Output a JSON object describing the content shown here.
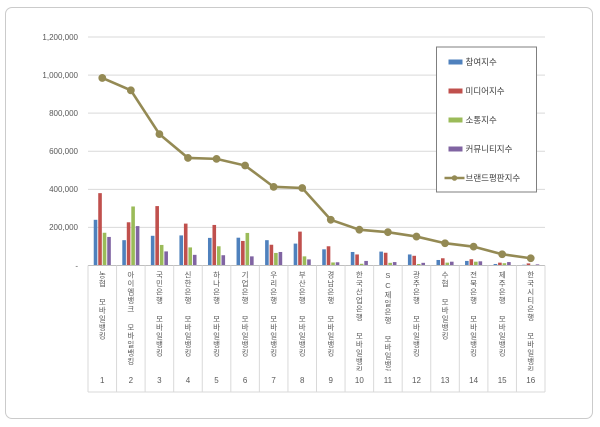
{
  "chart_data": {
    "type": "bar+line",
    "title": "",
    "legend_position": "upper right",
    "grid": true,
    "categories": [
      "농협 모바일뱅킹",
      "아이엠뱅크 모바일뱅킹",
      "국민은행 모바일뱅킹",
      "신한은행 모바일뱅킹",
      "하나은행 모바일뱅킹",
      "기업은행 모바일뱅킹",
      "우리은행 모바일뱅킹",
      "부산은행 모바일뱅킹",
      "경남은행 모바일뱅킹",
      "한국산업은행 모바일뱅킹",
      "SC제일은행 모바일뱅킹",
      "광주은행 모바일뱅킹",
      "수협 모바일뱅킹",
      "전북은행 모바일뱅킹",
      "제주은행 모바일뱅킹",
      "한국시티은행 모바일뱅킹"
    ],
    "rank_labels": [
      "1",
      "2",
      "3",
      "4",
      "5",
      "6",
      "7",
      "8",
      "9",
      "10",
      "11",
      "12",
      "13",
      "14",
      "15",
      "16"
    ],
    "series": [
      {
        "name": "참여지수",
        "type": "bar",
        "color": "#4F81BD",
        "values": [
          240000,
          133000,
          156000,
          158000,
          145000,
          146000,
          133000,
          115000,
          85000,
          71000,
          73000,
          58000,
          29000,
          24000,
          8000,
          4000
        ]
      },
      {
        "name": "미디어지수",
        "type": "bar",
        "color": "#C0504D",
        "values": [
          380000,
          227000,
          312000,
          220000,
          213000,
          129000,
          109000,
          178000,
          101000,
          58000,
          67000,
          51000,
          38000,
          33000,
          15000,
          11000
        ]
      },
      {
        "name": "소통지수",
        "type": "bar",
        "color": "#9BBB59",
        "values": [
          172000,
          310000,
          108000,
          95000,
          101000,
          171000,
          66000,
          48000,
          16000,
          9000,
          14000,
          8000,
          15000,
          20000,
          12000,
          3000
        ]
      },
      {
        "name": "커뮤니티지수",
        "type": "bar",
        "color": "#8064A2",
        "values": [
          150000,
          207000,
          74000,
          56000,
          54000,
          48000,
          71000,
          32000,
          17000,
          24000,
          18000,
          14000,
          20000,
          22000,
          18000,
          6000
        ]
      },
      {
        "name": "브랜드평판지수",
        "type": "line",
        "color": "#948A54",
        "values": [
          985000,
          920000,
          690000,
          565000,
          560000,
          525000,
          413000,
          407000,
          240000,
          188000,
          175000,
          152000,
          117000,
          99000,
          59000,
          38000
        ]
      }
    ],
    "y_axis": {
      "tick_labels": [
        "1,200,000",
        "1,000,000",
        "800,000",
        "600,000",
        "400,000",
        "200,000",
        "-"
      ],
      "tick_values": [
        1200000,
        1000000,
        800000,
        600000,
        400000,
        200000,
        0
      ],
      "min": 0,
      "max": 1200000
    }
  },
  "colors": {
    "gridline": "#D9D9D9",
    "axis_line": "#BFBFBF",
    "tick_text": "#595959",
    "legend_text": "#404040",
    "legend_border": "#7F7F7F",
    "frame_border": "#CBCBCB",
    "background": "#FFFFFF"
  }
}
